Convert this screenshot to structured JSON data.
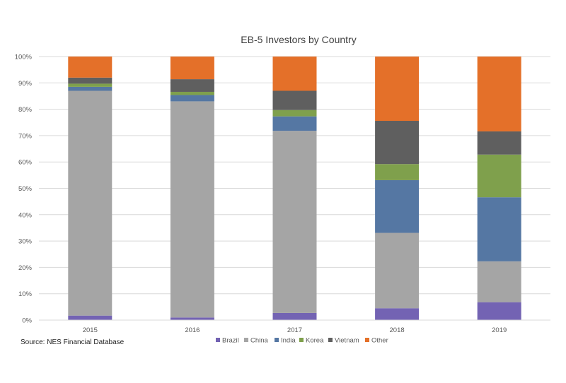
{
  "chart_data": {
    "type": "bar",
    "stacked": true,
    "percent": true,
    "title": "EB-5 Investors by Country",
    "xlabel": "",
    "ylabel": "",
    "categories": [
      "2015",
      "2016",
      "2017",
      "2018",
      "2019"
    ],
    "ylim": [
      0,
      100
    ],
    "yticks": [
      "0%",
      "10%",
      "20%",
      "30%",
      "40%",
      "50%",
      "60%",
      "70%",
      "80%",
      "90%",
      "100%"
    ],
    "grid": true,
    "legend_position": "bottom",
    "series": [
      {
        "name": "Brazil",
        "color": "#7363b3",
        "values": [
          1.7,
          1.0,
          2.7,
          4.5,
          6.8
        ]
      },
      {
        "name": "China",
        "color": "#a5a5a5",
        "values": [
          85.3,
          82.0,
          69.1,
          28.6,
          15.5
        ]
      },
      {
        "name": "India",
        "color": "#5577a3",
        "values": [
          1.5,
          2.4,
          5.5,
          20.0,
          24.3
        ]
      },
      {
        "name": "Korea",
        "color": "#7fa04c",
        "values": [
          1.2,
          1.2,
          2.4,
          6.1,
          16.2
        ]
      },
      {
        "name": "Vietnam",
        "color": "#5f5f5f",
        "values": [
          2.3,
          4.8,
          7.3,
          16.4,
          8.8
        ]
      },
      {
        "name": "Other",
        "color": "#e47029",
        "values": [
          8.0,
          8.6,
          13.0,
          24.4,
          28.4
        ]
      }
    ]
  },
  "source": "Source: NES Financial Database"
}
